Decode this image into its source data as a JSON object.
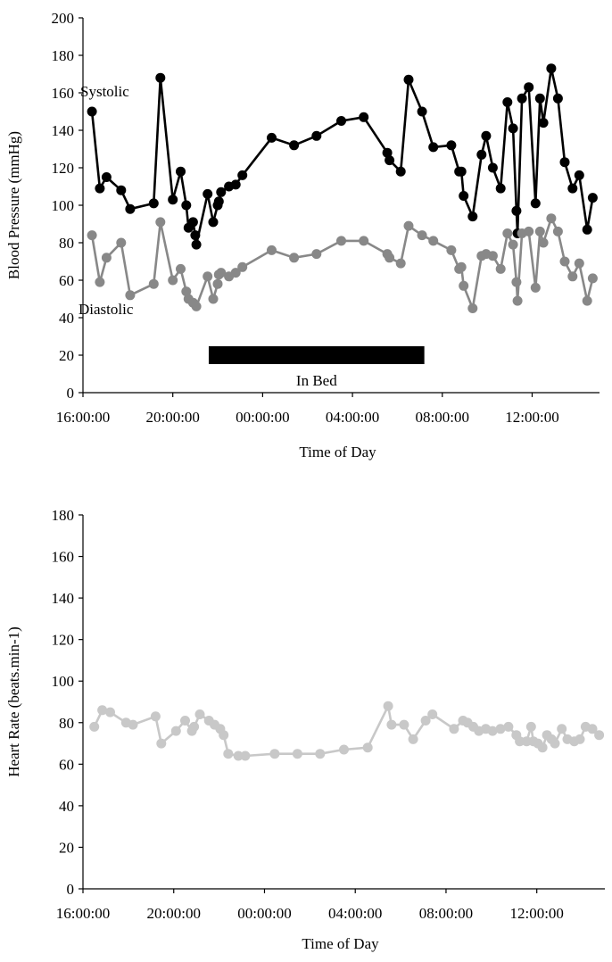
{
  "chart_data": [
    {
      "type": "line",
      "ylabel": "Blood Pressure (mmHg)",
      "xlabel": "Time of Day",
      "ylim": [
        0,
        200
      ],
      "yticks": [
        0,
        20,
        40,
        60,
        80,
        100,
        120,
        140,
        160,
        180,
        200
      ],
      "xlim_hours": [
        16.0,
        39.0
      ],
      "xticks": [
        {
          "h": 16,
          "label": "16:00:00"
        },
        {
          "h": 20,
          "label": "20:00:00"
        },
        {
          "h": 24,
          "label": "00:00:00"
        },
        {
          "h": 28,
          "label": "04:00:00"
        },
        {
          "h": 32,
          "label": "08:00:00"
        },
        {
          "h": 36,
          "label": "12:00:00"
        }
      ],
      "annotations": {
        "systolic_label": "Systolic",
        "diastolic_label": "Diastolic",
        "in_bed_label": "In Bed",
        "in_bed_hours": [
          21.6,
          31.2
        ],
        "in_bed_value": 20
      },
      "series": [
        {
          "name": "Systolic",
          "color": "#000000",
          "points": [
            [
              16.4,
              150
            ],
            [
              16.75,
              109
            ],
            [
              17.05,
              115
            ],
            [
              17.7,
              108
            ],
            [
              18.1,
              98
            ],
            [
              19.15,
              101
            ],
            [
              19.45,
              168
            ],
            [
              20.0,
              103
            ],
            [
              20.35,
              118
            ],
            [
              20.6,
              100
            ],
            [
              20.7,
              88
            ],
            [
              20.9,
              91
            ],
            [
              21.0,
              84
            ],
            [
              21.05,
              79
            ],
            [
              21.55,
              106
            ],
            [
              21.8,
              91
            ],
            [
              22.0,
              100
            ],
            [
              22.05,
              102
            ],
            [
              22.15,
              107
            ],
            [
              22.5,
              110
            ],
            [
              22.8,
              111
            ],
            [
              23.1,
              116
            ],
            [
              24.4,
              136
            ],
            [
              25.4,
              132
            ],
            [
              26.4,
              137
            ],
            [
              27.5,
              145
            ],
            [
              28.5,
              147
            ],
            [
              29.55,
              128
            ],
            [
              29.65,
              124
            ],
            [
              30.15,
              118
            ],
            [
              30.5,
              167
            ],
            [
              31.1,
              150
            ],
            [
              31.6,
              131
            ],
            [
              32.4,
              132
            ],
            [
              32.75,
              118
            ],
            [
              32.85,
              118
            ],
            [
              32.95,
              105
            ],
            [
              33.35,
              94
            ],
            [
              33.75,
              127
            ],
            [
              33.95,
              137
            ],
            [
              34.25,
              120
            ],
            [
              34.6,
              109
            ],
            [
              34.9,
              155
            ],
            [
              35.15,
              141
            ],
            [
              35.3,
              97
            ],
            [
              35.35,
              85
            ],
            [
              35.55,
              157
            ],
            [
              35.85,
              163
            ],
            [
              36.15,
              101
            ],
            [
              36.35,
              157
            ],
            [
              36.5,
              144
            ],
            [
              36.85,
              173
            ],
            [
              37.15,
              157
            ],
            [
              37.45,
              123
            ],
            [
              37.8,
              109
            ],
            [
              38.1,
              116
            ],
            [
              38.45,
              87
            ],
            [
              38.7,
              104
            ]
          ]
        },
        {
          "name": "Diastolic",
          "color": "#888888",
          "points": [
            [
              16.4,
              84
            ],
            [
              16.75,
              59
            ],
            [
              17.05,
              72
            ],
            [
              17.7,
              80
            ],
            [
              18.1,
              52
            ],
            [
              19.15,
              58
            ],
            [
              19.45,
              91
            ],
            [
              20.0,
              60
            ],
            [
              20.35,
              66
            ],
            [
              20.6,
              54
            ],
            [
              20.7,
              50
            ],
            [
              20.9,
              48
            ],
            [
              21.05,
              46
            ],
            [
              21.55,
              62
            ],
            [
              21.8,
              50
            ],
            [
              22.0,
              58
            ],
            [
              22.05,
              63
            ],
            [
              22.15,
              64
            ],
            [
              22.5,
              62
            ],
            [
              22.8,
              64
            ],
            [
              23.1,
              67
            ],
            [
              24.4,
              76
            ],
            [
              25.4,
              72
            ],
            [
              26.4,
              74
            ],
            [
              27.5,
              81
            ],
            [
              28.5,
              81
            ],
            [
              29.55,
              74
            ],
            [
              29.65,
              72
            ],
            [
              30.15,
              69
            ],
            [
              30.5,
              89
            ],
            [
              31.1,
              84
            ],
            [
              31.6,
              81
            ],
            [
              32.4,
              76
            ],
            [
              32.75,
              66
            ],
            [
              32.85,
              67
            ],
            [
              32.95,
              57
            ],
            [
              33.35,
              45
            ],
            [
              33.75,
              73
            ],
            [
              33.95,
              74
            ],
            [
              34.25,
              73
            ],
            [
              34.6,
              66
            ],
            [
              34.9,
              85
            ],
            [
              35.15,
              79
            ],
            [
              35.3,
              59
            ],
            [
              35.35,
              49
            ],
            [
              35.55,
              85
            ],
            [
              35.85,
              86
            ],
            [
              36.15,
              56
            ],
            [
              36.35,
              86
            ],
            [
              36.5,
              80
            ],
            [
              36.85,
              93
            ],
            [
              37.15,
              86
            ],
            [
              37.45,
              70
            ],
            [
              37.8,
              62
            ],
            [
              38.1,
              69
            ],
            [
              38.45,
              49
            ],
            [
              38.7,
              61
            ]
          ]
        }
      ]
    },
    {
      "type": "line",
      "ylabel": "Heart Rate (beats.min-1)",
      "xlabel": "Time of Day",
      "ylim": [
        0,
        180
      ],
      "yticks": [
        0,
        20,
        40,
        60,
        80,
        100,
        120,
        140,
        160,
        180
      ],
      "xlim_hours": [
        16.0,
        39.0
      ],
      "xticks": [
        {
          "h": 16,
          "label": "16:00:00"
        },
        {
          "h": 20,
          "label": "20:00:00"
        },
        {
          "h": 24,
          "label": "00:00:00"
        },
        {
          "h": 28,
          "label": "04:00:00"
        },
        {
          "h": 32,
          "label": "08:00:00"
        },
        {
          "h": 36,
          "label": "12:00:00"
        }
      ],
      "series": [
        {
          "name": "Heart Rate",
          "color": "#c8c8c8",
          "points": [
            [
              16.5,
              78
            ],
            [
              16.85,
              86
            ],
            [
              17.2,
              85
            ],
            [
              17.9,
              80
            ],
            [
              18.2,
              79
            ],
            [
              19.2,
              83
            ],
            [
              19.45,
              70
            ],
            [
              20.1,
              76
            ],
            [
              20.5,
              81
            ],
            [
              20.8,
              76
            ],
            [
              20.9,
              78
            ],
            [
              21.15,
              84
            ],
            [
              21.55,
              81
            ],
            [
              21.8,
              79
            ],
            [
              22.05,
              77
            ],
            [
              22.2,
              74
            ],
            [
              22.4,
              65
            ],
            [
              22.85,
              64
            ],
            [
              23.15,
              64
            ],
            [
              24.45,
              65
            ],
            [
              25.45,
              65
            ],
            [
              26.45,
              65
            ],
            [
              27.5,
              67
            ],
            [
              28.55,
              68
            ],
            [
              29.45,
              88
            ],
            [
              29.6,
              79
            ],
            [
              30.15,
              79
            ],
            [
              30.55,
              72
            ],
            [
              31.1,
              81
            ],
            [
              31.4,
              84
            ],
            [
              32.35,
              77
            ],
            [
              32.75,
              81
            ],
            [
              32.95,
              80
            ],
            [
              33.2,
              78
            ],
            [
              33.45,
              76
            ],
            [
              33.75,
              77
            ],
            [
              34.05,
              76
            ],
            [
              34.4,
              77
            ],
            [
              34.75,
              78
            ],
            [
              35.1,
              74
            ],
            [
              35.25,
              71
            ],
            [
              35.55,
              71
            ],
            [
              35.75,
              78
            ],
            [
              35.85,
              71
            ],
            [
              36.05,
              70
            ],
            [
              36.25,
              68
            ],
            [
              36.45,
              74
            ],
            [
              36.65,
              72
            ],
            [
              36.8,
              70
            ],
            [
              37.1,
              77
            ],
            [
              37.35,
              72
            ],
            [
              37.65,
              71
            ],
            [
              37.9,
              72
            ],
            [
              38.15,
              78
            ],
            [
              38.45,
              77
            ],
            [
              38.75,
              74
            ]
          ]
        }
      ]
    }
  ]
}
